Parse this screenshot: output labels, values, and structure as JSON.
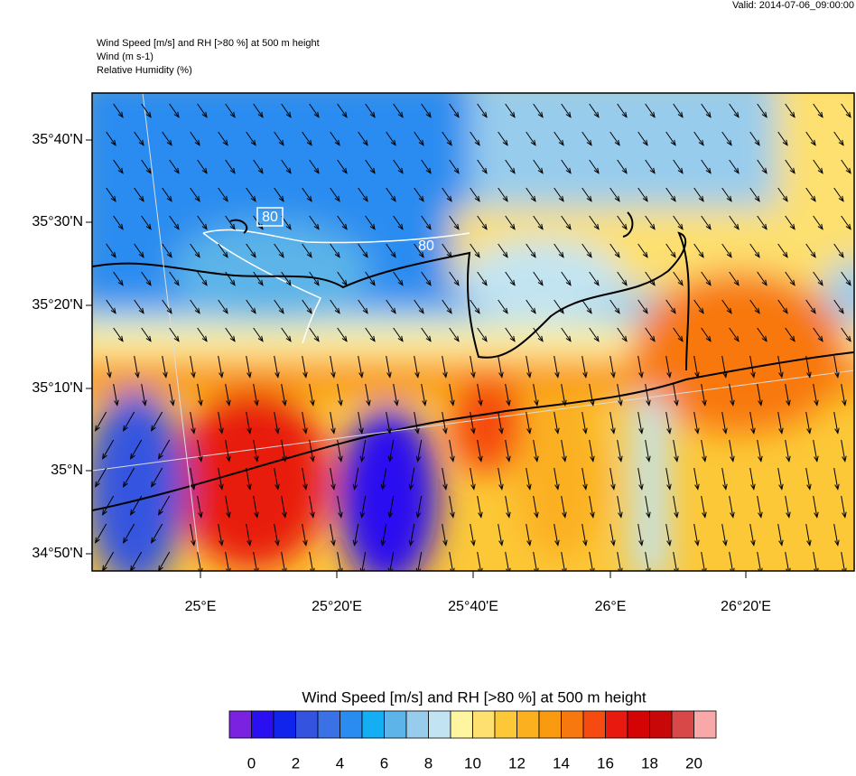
{
  "valid": "Valid: 2014-07-06_09:00:00",
  "header": [
    "Wind Speed [m/s] and RH [>80 %] at 500 m height",
    "Wind   (m s-1)",
    "Relative Humidity   (%)"
  ],
  "map": {
    "lat_labels": [
      "35°40'N",
      "35°30'N",
      "35°20'N",
      "35°10'N",
      "35°N",
      "34°50'N"
    ],
    "lon_labels": [
      "25°E",
      "25°20'E",
      "25°40'E",
      "26°E",
      "26°20'E"
    ],
    "contour_labels": [
      "80",
      "80"
    ]
  },
  "colorbar": {
    "title": "Wind Speed [m/s] and RH [>80 %] at 500 m height",
    "colors": [
      "#7b22e0",
      "#2a10f0",
      "#1024ec",
      "#3454e0",
      "#3a72e6",
      "#2a8cf0",
      "#14aef2",
      "#5cb4e8",
      "#98ccec",
      "#c2e4f2",
      "#fff5a0",
      "#fde070",
      "#fcc838",
      "#fbb020",
      "#f99a10",
      "#f87810",
      "#f54a10",
      "#e81a10",
      "#d40404",
      "#c80808",
      "#d84848",
      "#f8a8a8"
    ],
    "ticks": [
      0,
      2,
      4,
      6,
      8,
      10,
      12,
      14,
      16,
      18,
      20
    ]
  }
}
